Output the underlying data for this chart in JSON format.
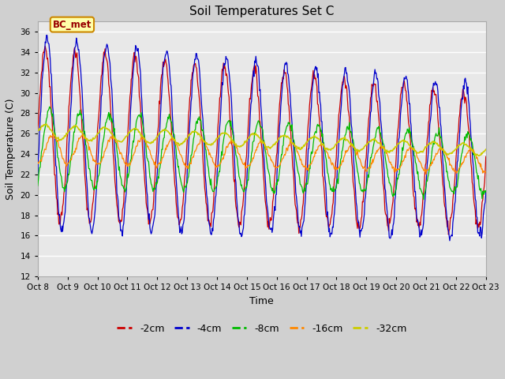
{
  "title": "Soil Temperatures Set C",
  "xlabel": "Time",
  "ylabel": "Soil Temperature (C)",
  "ylim": [
    12,
    37
  ],
  "yticks": [
    12,
    14,
    16,
    18,
    20,
    22,
    24,
    26,
    28,
    30,
    32,
    34,
    36
  ],
  "series_colors": {
    "-2cm": "#cc0000",
    "-4cm": "#0000cc",
    "-8cm": "#00bb00",
    "-16cm": "#ff8800",
    "-32cm": "#cccc00"
  },
  "annotation_text": "BC_met",
  "annotation_bg": "#ffffaa",
  "annotation_border": "#cc8800",
  "plot_bg": "#e8e8e8",
  "fig_bg": "#d0d0d0",
  "grid_color": "#ffffff",
  "tick_labels": [
    "Oct 8",
    "Oct 9",
    "Oct 10",
    "Oct 11",
    "Oct 12",
    "Oct 13",
    "Oct 14",
    "Oct 15",
    "Oct 16",
    "Oct 17",
    "Oct 18",
    "Oct 19",
    "Oct 20",
    "Oct 21",
    "Oct 22",
    "Oct 23"
  ],
  "n_days": 15,
  "n_per_day": 48,
  "base_2cm": 26.0,
  "base_4cm": 26.0,
  "base_8cm": 24.5,
  "base_16cm": 24.5,
  "base_32cm": 26.2,
  "trend_2cm": -0.18,
  "trend_4cm": -0.18,
  "trend_8cm": -0.1,
  "trend_16cm": -0.08,
  "trend_32cm": -0.12,
  "amp_2cm": 8.5,
  "amp_4cm": 9.5,
  "amp_8cm": 3.8,
  "amp_16cm": 1.4,
  "amp_32cm": 0.7,
  "phase_2cm": 0.0,
  "phase_4cm": 0.06,
  "phase_8cm": 0.15,
  "phase_16cm": 0.25,
  "phase_32cm": 0.0
}
